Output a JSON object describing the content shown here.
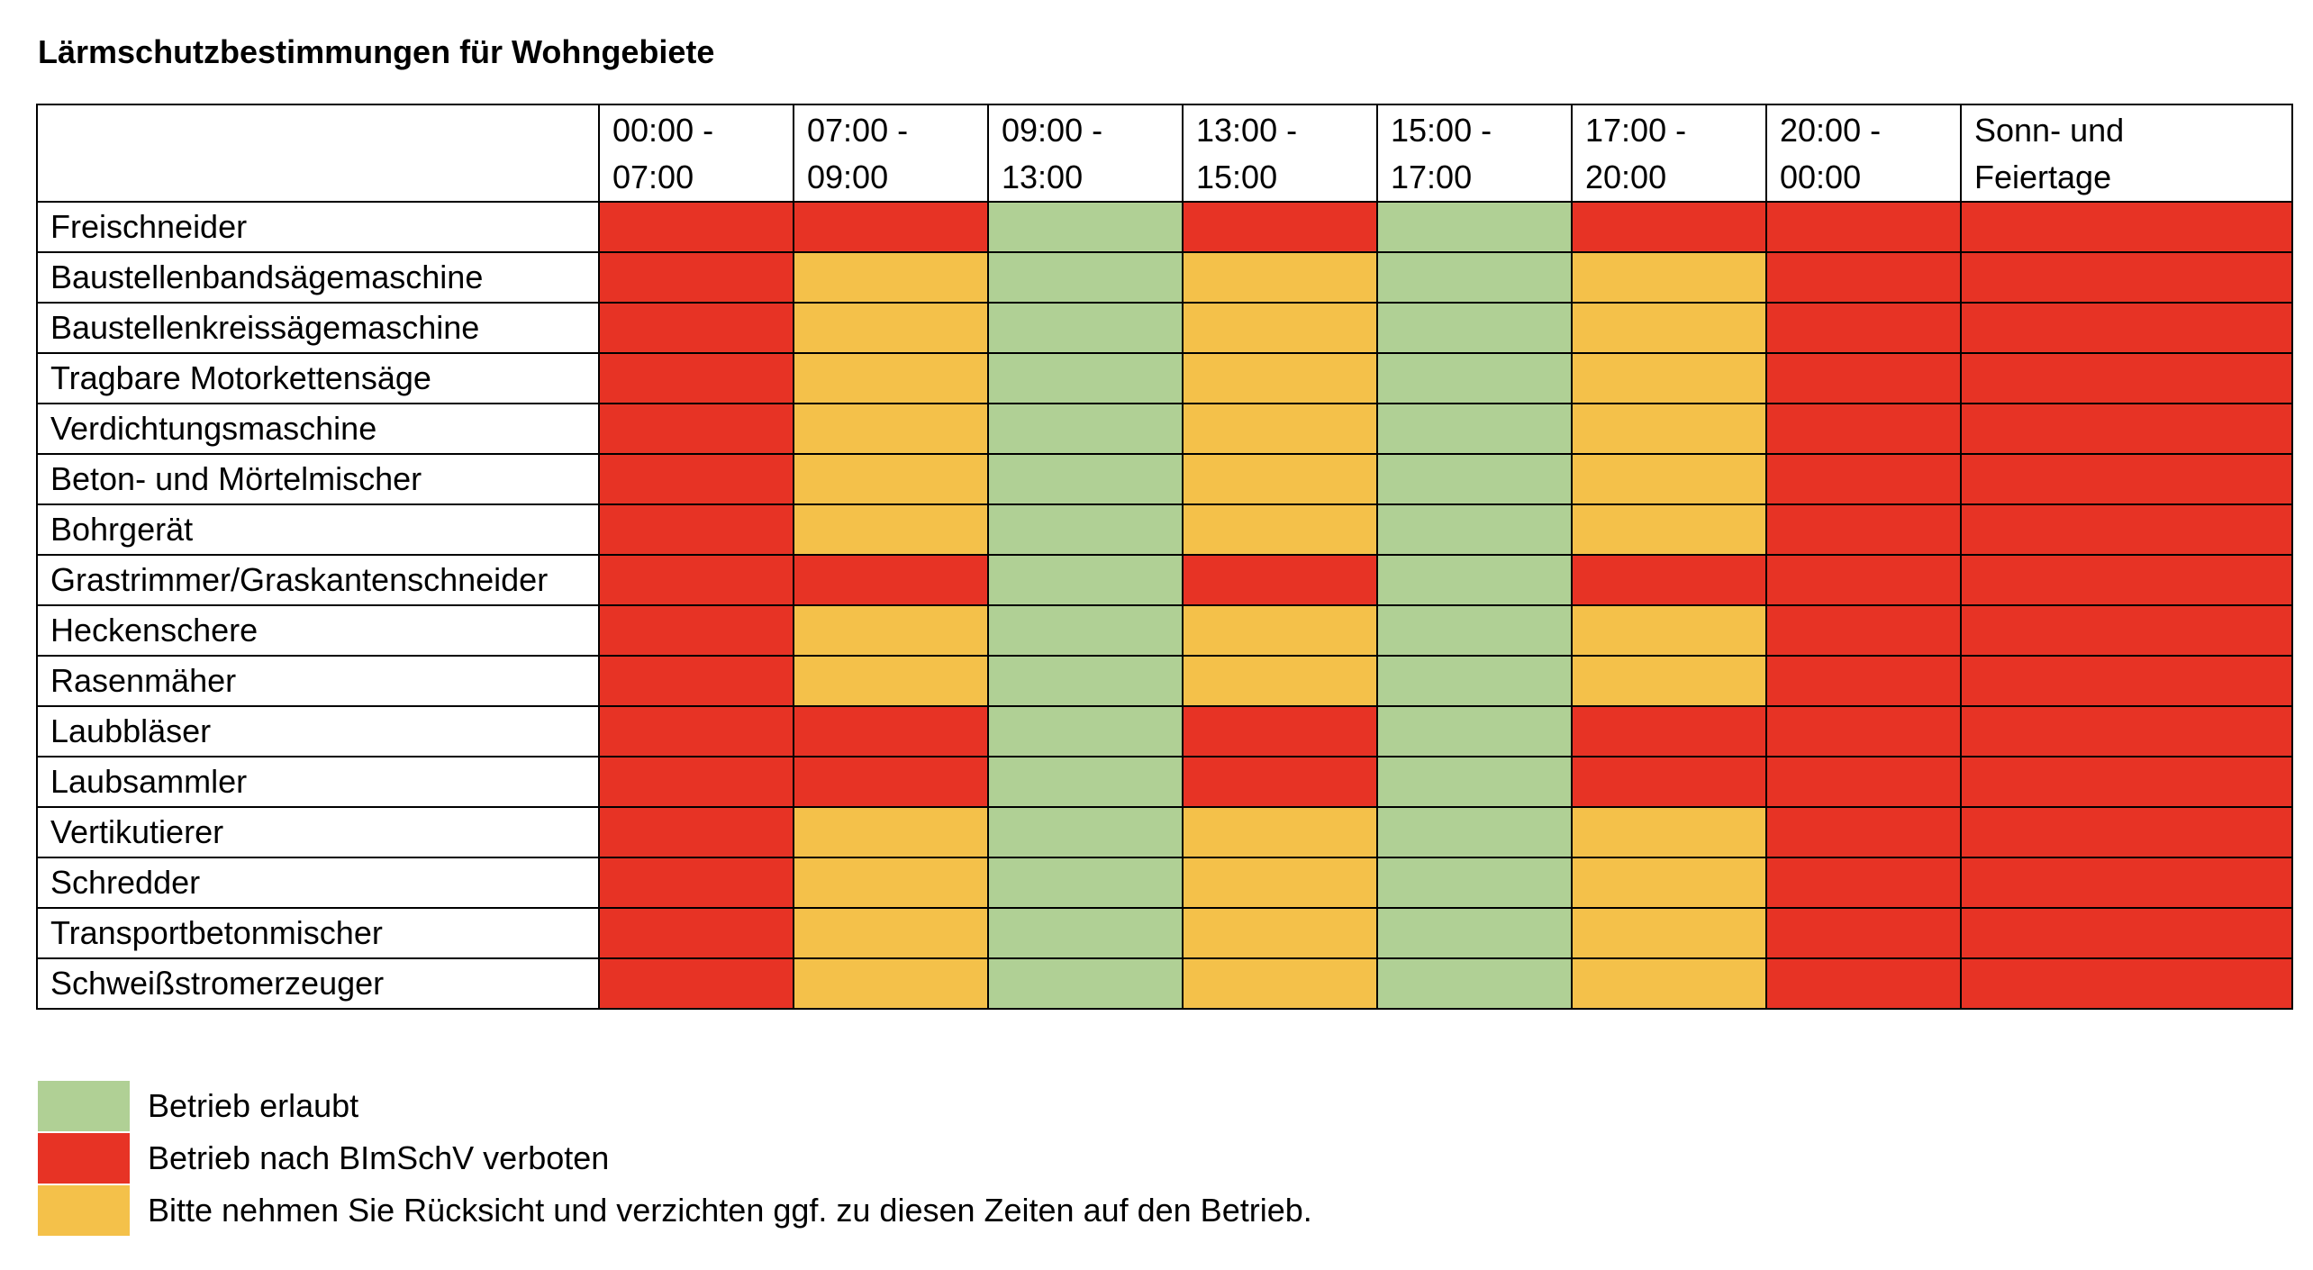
{
  "title": "Lärmschutzbestimmungen für Wohngebiete",
  "colors": {
    "G": "#b0d095",
    "R": "#e73325",
    "Y": "#f4c14a"
  },
  "columns": [
    "",
    "00:00 -\n07:00",
    "07:00 -\n09:00",
    "09:00 -\n13:00",
    "13:00 -\n15:00",
    "15:00 -\n17:00",
    "17:00 -\n20:00",
    "20:00 -\n00:00",
    "Sonn- und\nFeiertage"
  ],
  "rows": [
    {
      "name": "Freischneider",
      "cells": [
        "R",
        "R",
        "G",
        "R",
        "G",
        "R",
        "R",
        "R"
      ]
    },
    {
      "name": "Baustellenbandsägemaschine",
      "cells": [
        "R",
        "Y",
        "G",
        "Y",
        "G",
        "Y",
        "R",
        "R"
      ]
    },
    {
      "name": "Baustellenkreissägemaschine",
      "cells": [
        "R",
        "Y",
        "G",
        "Y",
        "G",
        "Y",
        "R",
        "R"
      ]
    },
    {
      "name": "Tragbare Motorkettensäge",
      "cells": [
        "R",
        "Y",
        "G",
        "Y",
        "G",
        "Y",
        "R",
        "R"
      ]
    },
    {
      "name": "Verdichtungsmaschine",
      "cells": [
        "R",
        "Y",
        "G",
        "Y",
        "G",
        "Y",
        "R",
        "R"
      ]
    },
    {
      "name": "Beton- und Mörtelmischer",
      "cells": [
        "R",
        "Y",
        "G",
        "Y",
        "G",
        "Y",
        "R",
        "R"
      ]
    },
    {
      "name": "Bohrgerät",
      "cells": [
        "R",
        "Y",
        "G",
        "Y",
        "G",
        "Y",
        "R",
        "R"
      ]
    },
    {
      "name": "Grastrimmer/Graskantenschneider",
      "cells": [
        "R",
        "R",
        "G",
        "R",
        "G",
        "R",
        "R",
        "R"
      ]
    },
    {
      "name": "Heckenschere",
      "cells": [
        "R",
        "Y",
        "G",
        "Y",
        "G",
        "Y",
        "R",
        "R"
      ]
    },
    {
      "name": "Rasenmäher",
      "cells": [
        "R",
        "Y",
        "G",
        "Y",
        "G",
        "Y",
        "R",
        "R"
      ]
    },
    {
      "name": "Laubbläser",
      "cells": [
        "R",
        "R",
        "G",
        "R",
        "G",
        "R",
        "R",
        "R"
      ]
    },
    {
      "name": "Laubsammler",
      "cells": [
        "R",
        "R",
        "G",
        "R",
        "G",
        "R",
        "R",
        "R"
      ]
    },
    {
      "name": "Vertikutierer",
      "cells": [
        "R",
        "Y",
        "G",
        "Y",
        "G",
        "Y",
        "R",
        "R"
      ]
    },
    {
      "name": "Schredder",
      "cells": [
        "R",
        "Y",
        "G",
        "Y",
        "G",
        "Y",
        "R",
        "R"
      ]
    },
    {
      "name": "Transportbetonmischer",
      "cells": [
        "R",
        "Y",
        "G",
        "Y",
        "G",
        "Y",
        "R",
        "R"
      ]
    },
    {
      "name": "Schweißstromerzeuger",
      "cells": [
        "R",
        "Y",
        "G",
        "Y",
        "G",
        "Y",
        "R",
        "R"
      ]
    }
  ],
  "legend": [
    {
      "code": "G",
      "label": "Betrieb erlaubt"
    },
    {
      "code": "R",
      "label": "Betrieb nach BImSchV verboten"
    },
    {
      "code": "Y",
      "label": "Bitte nehmen Sie Rücksicht und verzichten ggf. zu diesen Zeiten auf den Betrieb."
    }
  ]
}
